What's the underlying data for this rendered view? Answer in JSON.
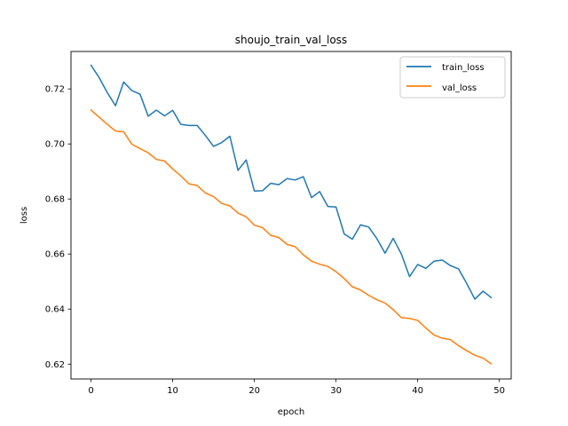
{
  "chart_data": {
    "type": "line",
    "title": "shoujo_train_val_loss",
    "xlabel": "epoch",
    "ylabel": "loss",
    "xlim": [
      -2.45,
      51.45
    ],
    "ylim": [
      0.6146,
      0.7336
    ],
    "xticks": [
      0,
      10,
      20,
      30,
      40,
      50
    ],
    "yticks": [
      0.62,
      0.64,
      0.66,
      0.68,
      0.7,
      0.72
    ],
    "ytick_labels": [
      "0.62",
      "0.64",
      "0.66",
      "0.68",
      "0.70",
      "0.72"
    ],
    "grid": false,
    "legend_position": "top-right",
    "x": [
      0,
      1,
      2,
      3,
      4,
      5,
      6,
      7,
      8,
      9,
      10,
      11,
      12,
      13,
      14,
      15,
      16,
      17,
      18,
      19,
      20,
      21,
      22,
      23,
      24,
      25,
      26,
      27,
      28,
      29,
      30,
      31,
      32,
      33,
      34,
      35,
      36,
      37,
      38,
      39,
      40,
      41,
      42,
      43,
      44,
      45,
      46,
      47,
      48,
      49
    ],
    "series": [
      {
        "name": "train_loss",
        "color": "#1f77b4",
        "values": [
          0.7286,
          0.7241,
          0.7186,
          0.7139,
          0.7225,
          0.7194,
          0.7181,
          0.7101,
          0.7123,
          0.7102,
          0.7122,
          0.7071,
          0.7067,
          0.7067,
          0.7031,
          0.6991,
          0.7005,
          0.7028,
          0.6904,
          0.6942,
          0.6829,
          0.683,
          0.6857,
          0.6852,
          0.6874,
          0.6869,
          0.6881,
          0.6805,
          0.6827,
          0.6773,
          0.6771,
          0.6673,
          0.6654,
          0.6706,
          0.6698,
          0.6656,
          0.6603,
          0.6657,
          0.66,
          0.6518,
          0.6562,
          0.6548,
          0.6574,
          0.6578,
          0.6558,
          0.6546,
          0.6493,
          0.6436,
          0.6465,
          0.6442
        ]
      },
      {
        "name": "val_loss",
        "color": "#ff7f0e",
        "values": [
          0.7123,
          0.7097,
          0.7071,
          0.7047,
          0.7044,
          0.6999,
          0.6983,
          0.6968,
          0.6944,
          0.6938,
          0.6909,
          0.6884,
          0.6855,
          0.6849,
          0.6822,
          0.6809,
          0.6784,
          0.6775,
          0.6749,
          0.6735,
          0.6705,
          0.6696,
          0.6668,
          0.666,
          0.6635,
          0.6627,
          0.6597,
          0.6574,
          0.6563,
          0.6555,
          0.6536,
          0.6511,
          0.6481,
          0.6469,
          0.645,
          0.6434,
          0.6422,
          0.6398,
          0.6369,
          0.6366,
          0.6359,
          0.6331,
          0.6306,
          0.6294,
          0.6289,
          0.6267,
          0.6249,
          0.6232,
          0.6222,
          0.6201
        ]
      }
    ]
  }
}
